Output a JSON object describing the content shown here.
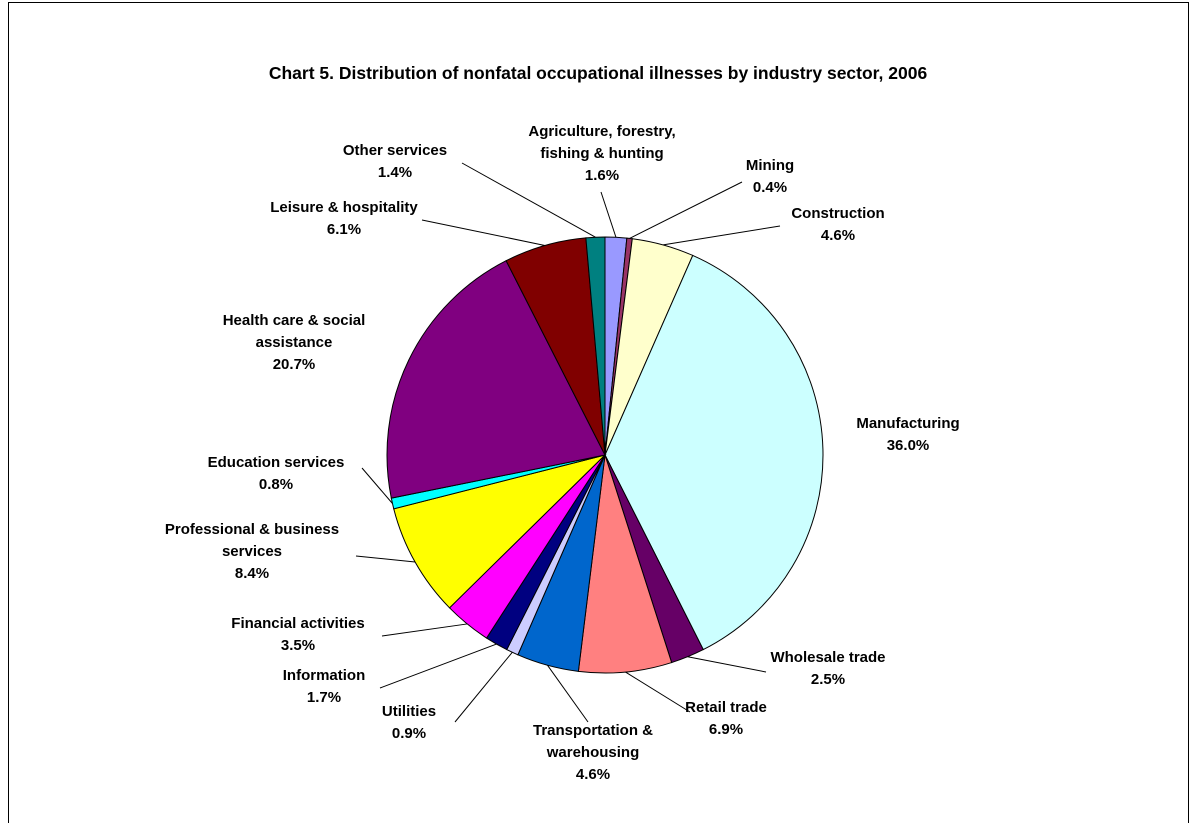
{
  "chart_data": {
    "type": "pie",
    "title": "Chart 5.  Distribution of nonfatal occupational illnesses by industry sector, 2006",
    "categories": [
      "Agriculture, forestry,\nfishing & hunting",
      "Mining",
      "Construction",
      "Manufacturing",
      "Wholesale trade",
      "Retail trade",
      "Transportation &\nwarehousing",
      "Utilities",
      "Information",
      "Financial activities",
      "Professional & business\nservices",
      "Education services",
      "Health care & social\nassistance",
      "Leisure & hospitality",
      "Other services"
    ],
    "values": [
      1.6,
      0.4,
      4.6,
      36.0,
      2.5,
      6.9,
      4.6,
      0.9,
      1.7,
      3.5,
      8.4,
      0.8,
      20.7,
      6.1,
      1.4
    ],
    "value_labels": [
      "1.6%",
      "0.4%",
      "4.6%",
      "36.0%",
      "2.5%",
      "6.9%",
      "4.6%",
      "0.9%",
      "1.7%",
      "3.5%",
      "8.4%",
      "0.8%",
      "20.7%",
      "6.1%",
      "1.4%"
    ],
    "colors": [
      "#9999FF",
      "#993366",
      "#FFFFCC",
      "#CCFFFF",
      "#660066",
      "#FF8080",
      "#0066CC",
      "#CCCCFF",
      "#000080",
      "#FF00FF",
      "#FFFF00",
      "#00FFFF",
      "#800080",
      "#800000",
      "#008080"
    ]
  }
}
